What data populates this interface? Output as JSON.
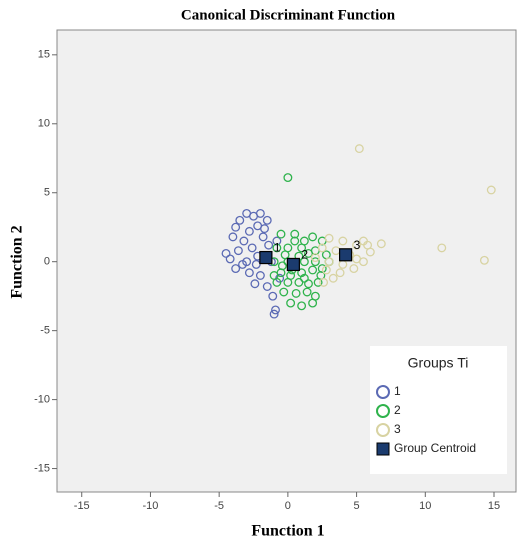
{
  "chart_data": {
    "type": "scatter",
    "title": "Canonical Discriminant Function",
    "x_label": "Function 1",
    "y_label": "Function 2",
    "xlim": [
      -16.8,
      16.6
    ],
    "ylim": [
      -16.7,
      16.8
    ],
    "xticks": [
      -15,
      -10,
      -5,
      0,
      5,
      10,
      15
    ],
    "yticks": [
      -15,
      -10,
      -5,
      0,
      5,
      10,
      15
    ],
    "legend_title": "Groups Ti",
    "legend": "lower right",
    "series": [
      {
        "name": "1",
        "color": "#5b6ab4",
        "x": [
          -3,
          -2.5,
          -3.5,
          -2,
          -1.5,
          -3.8,
          -2.8,
          -2.2,
          -4,
          -3.2,
          -1.8,
          -2.6,
          -3.6,
          -4.2,
          -3,
          -2.2,
          -1.4,
          -1.2,
          -3.8,
          -2.8,
          -2,
          -1.5,
          -1.1,
          -0.9,
          -1,
          -2.4,
          -3.3,
          -4.5,
          -1.7,
          -0.8,
          -2.3,
          -0.6
        ],
        "y": [
          3.5,
          3.3,
          3,
          3.5,
          3,
          2.5,
          2.2,
          2.6,
          1.8,
          1.5,
          1.8,
          1,
          0.8,
          0.2,
          0,
          0.4,
          1.2,
          0,
          -0.5,
          -0.8,
          -1,
          -1.8,
          -2.5,
          -3.5,
          -3.8,
          -1.6,
          -0.2,
          0.6,
          2.4,
          1.5,
          -0.2,
          -1.2
        ]
      },
      {
        "name": "2",
        "color": "#2fb34c",
        "x": [
          0,
          -0.5,
          0.5,
          1.2,
          1.8,
          2.5,
          -0.8,
          0,
          1,
          2,
          2.8,
          -1,
          0,
          0.5,
          1.2,
          2,
          3,
          -0.5,
          0.3,
          1,
          1.8,
          2.5,
          -0.8,
          0,
          0.8,
          1.5,
          2.2,
          -0.3,
          0.6,
          1.4,
          2,
          0.2,
          1,
          1.8,
          -0.2,
          0.8,
          1.5,
          -0.4,
          0.2,
          1.2,
          2.4,
          0.5,
          -1
        ],
        "y": [
          6.1,
          2,
          2,
          1.5,
          1.8,
          1.5,
          1,
          1,
          1,
          0.8,
          0.5,
          0,
          0,
          -0.2,
          0,
          0,
          0,
          -0.8,
          -0.6,
          -0.8,
          -0.6,
          -0.5,
          -1.5,
          -1.5,
          -1.5,
          -1.6,
          -1.5,
          -2.2,
          -2.3,
          -2.2,
          -2.5,
          -3,
          -3.2,
          -3,
          0.5,
          0.4,
          0.6,
          -0.3,
          -1,
          -1.2,
          -1,
          1.5,
          -1
        ]
      },
      {
        "name": "3",
        "color": "#d8d3a2",
        "x": [
          5.2,
          14.8,
          11.2,
          14.3,
          6.8,
          5.5,
          5.8,
          3,
          4,
          2.5,
          3.5,
          4.5,
          5,
          3,
          4,
          5.5,
          2.8,
          3.8,
          4.8,
          2.6,
          3.3,
          6,
          5,
          2
        ],
        "y": [
          8.2,
          5.2,
          1,
          0.1,
          1.3,
          1.5,
          1.2,
          1.7,
          1.5,
          1,
          0.8,
          0.5,
          0.2,
          0,
          -0.2,
          0,
          -0.6,
          -0.8,
          -0.5,
          -1.5,
          -1.2,
          0.7,
          1.2,
          0.3
        ]
      },
      {
        "name": "Group Centroid",
        "color": "#1b3b6e",
        "marker": "square",
        "x": [
          -1.6,
          0.4,
          4.2
        ],
        "y": [
          0.3,
          -0.2,
          0.5
        ],
        "labels": [
          "1",
          "2",
          "3"
        ]
      }
    ]
  }
}
